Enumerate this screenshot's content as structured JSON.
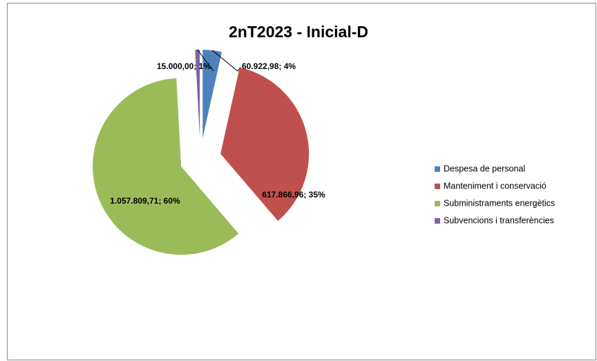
{
  "chart_data": {
    "type": "pie",
    "title": "2nT2023 -  Inicial-D",
    "categories": [
      "Despesa de personal",
      "Manteniment i conservació",
      "Subministraments energètics",
      "Subvencions i transferències"
    ],
    "values": [
      60922.98,
      617866.96,
      1057809.71,
      15000.0
    ],
    "value_labels": [
      "60.922,98; 4%",
      "617.866,96; 35%",
      "1.057.809,71; 60%",
      "15.000,00; 1%"
    ],
    "colors": [
      "#4f81bd",
      "#c0504d",
      "#9bbb59",
      "#8064a2"
    ],
    "legend": "right"
  }
}
